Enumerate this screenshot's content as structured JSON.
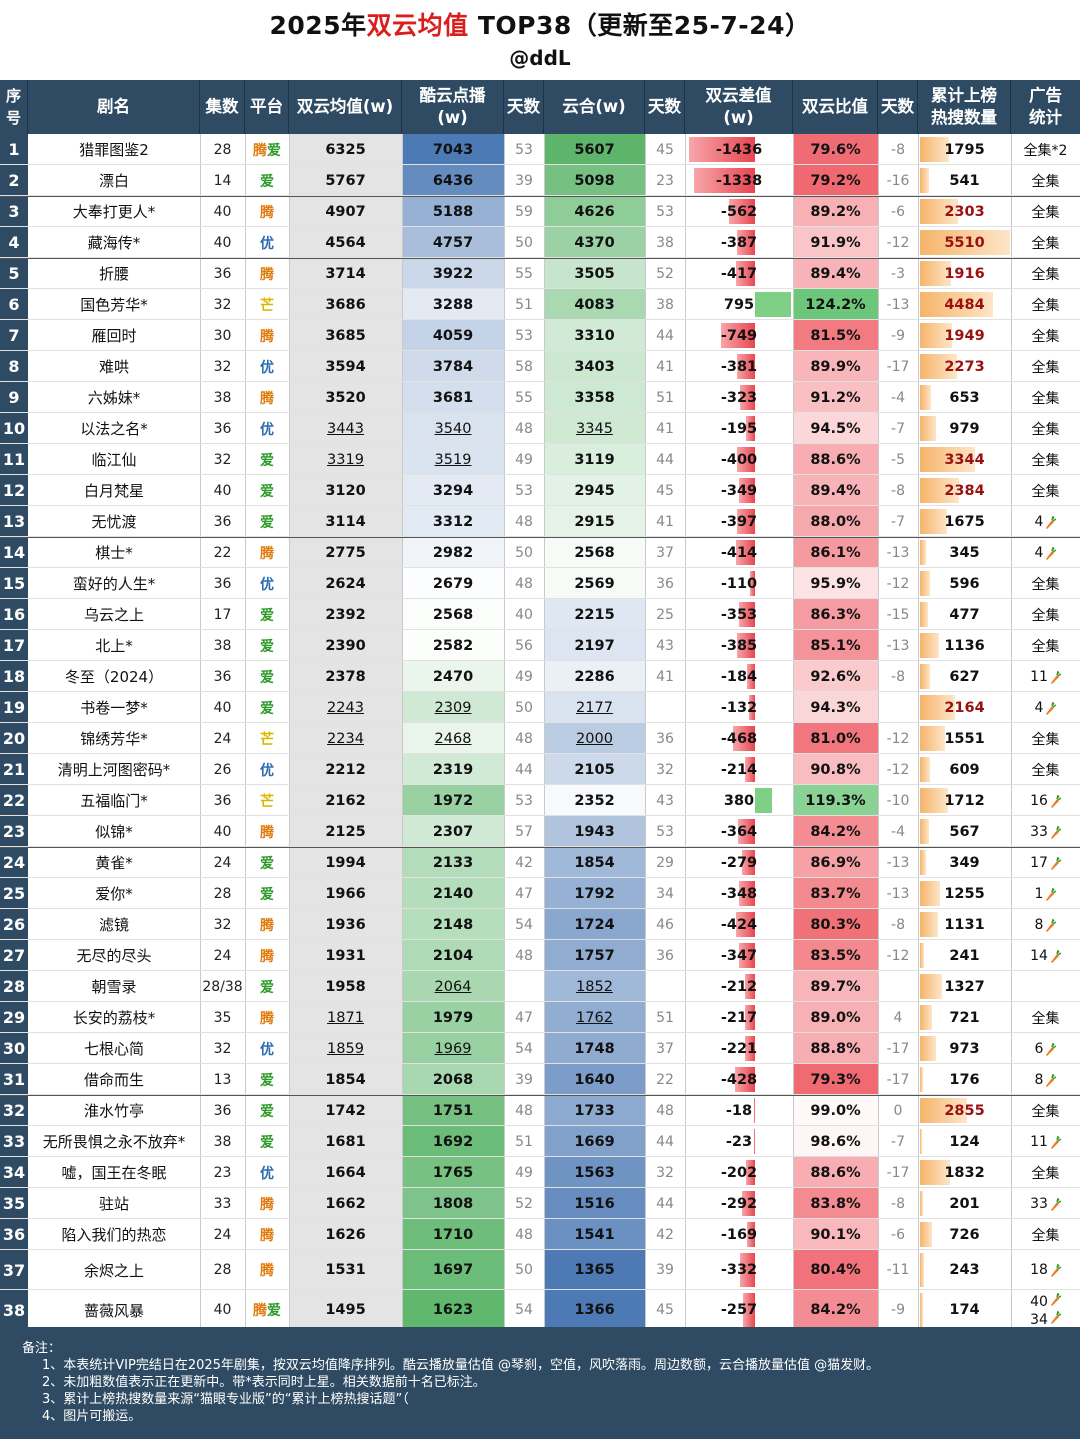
{
  "title_prefix": "2025年",
  "title_highlight": "双云均值",
  "title_suffix": " TOP38（更新至25-7-24）",
  "author": "@ddL",
  "headers": {
    "seq": "序号",
    "name": "剧名",
    "eps": "集数",
    "plat": "平台",
    "avg": "双云均值(w)",
    "ku": "酷云点播(w)",
    "kuday": "天数",
    "yun": "云合(w)",
    "yunday": "天数",
    "diff": "双云差值(w)",
    "ratio": "双云比值",
    "rday": "天数",
    "hot": "累计上榜热搜数量",
    "ad": "广告统计"
  },
  "colors": {
    "header_bg": "#2f4b63",
    "teng": "#e07b0e",
    "ai": "#2d9a2a",
    "you": "#2b6cb0",
    "mang": "#d9b600",
    "highlight": "#d91e1e"
  },
  "rows": [
    {
      "seq": "1",
      "name": "猎罪图鉴2",
      "eps": "28",
      "plat": "腾爱",
      "avg": "6325",
      "ku": "7043",
      "kud": "53",
      "yun": "5607",
      "yund": "45",
      "diff": "-1436",
      "ratio": "79.6%",
      "rd": "-8",
      "hot": "1795",
      "ad": "全集*2",
      "hotred": false
    },
    {
      "seq": "2",
      "name": "漂白",
      "eps": "14",
      "plat": "爱",
      "avg": "5767",
      "ku": "6436",
      "kud": "39",
      "yun": "5098",
      "yund": "23",
      "diff": "-1338",
      "ratio": "79.2%",
      "rd": "-16",
      "hot": "541",
      "ad": "全集",
      "hotred": false
    },
    {
      "seq": "3",
      "name": "大奉打更人*",
      "eps": "40",
      "plat": "腾",
      "avg": "4907",
      "ku": "5188",
      "kud": "59",
      "yun": "4626",
      "yund": "53",
      "diff": "-562",
      "ratio": "89.2%",
      "rd": "-6",
      "hot": "2303",
      "ad": "全集",
      "hotred": true
    },
    {
      "seq": "4",
      "name": "藏海传*",
      "eps": "40",
      "plat": "优",
      "avg": "4564",
      "ku": "4757",
      "kud": "50",
      "yun": "4370",
      "yund": "38",
      "diff": "-387",
      "ratio": "91.9%",
      "rd": "-12",
      "hot": "5510",
      "ad": "全集",
      "hotred": true
    },
    {
      "seq": "5",
      "name": "折腰",
      "eps": "36",
      "plat": "腾",
      "avg": "3714",
      "ku": "3922",
      "kud": "55",
      "yun": "3505",
      "yund": "52",
      "diff": "-417",
      "ratio": "89.4%",
      "rd": "-3",
      "hot": "1916",
      "ad": "全集",
      "hotred": true
    },
    {
      "seq": "6",
      "name": "国色芳华*",
      "eps": "32",
      "plat": "芒",
      "avg": "3686",
      "ku": "3288",
      "kud": "51",
      "yun": "4083",
      "yund": "38",
      "diff": "795",
      "ratio": "124.2%",
      "rd": "-13",
      "hot": "4484",
      "ad": "全集",
      "hotred": true
    },
    {
      "seq": "7",
      "name": "雁回时",
      "eps": "30",
      "plat": "腾",
      "avg": "3685",
      "ku": "4059",
      "kud": "53",
      "yun": "3310",
      "yund": "44",
      "diff": "-749",
      "ratio": "81.5%",
      "rd": "-9",
      "hot": "1949",
      "ad": "全集",
      "hotred": true
    },
    {
      "seq": "8",
      "name": "难哄",
      "eps": "32",
      "plat": "优",
      "avg": "3594",
      "ku": "3784",
      "kud": "58",
      "yun": "3403",
      "yund": "41",
      "diff": "-381",
      "ratio": "89.9%",
      "rd": "-17",
      "hot": "2273",
      "ad": "全集",
      "hotred": true
    },
    {
      "seq": "9",
      "name": "六姊妹*",
      "eps": "38",
      "plat": "腾",
      "avg": "3520",
      "ku": "3681",
      "kud": "55",
      "yun": "3358",
      "yund": "51",
      "diff": "-323",
      "ratio": "91.2%",
      "rd": "-4",
      "hot": "653",
      "ad": "全集",
      "hotred": false
    },
    {
      "seq": "10",
      "name": "以法之名*",
      "eps": "36",
      "plat": "优",
      "avg": "3443",
      "ku": "3540",
      "kud": "48",
      "yun": "3345",
      "yund": "41",
      "diff": "-195",
      "ratio": "94.5%",
      "rd": "-7",
      "hot": "979",
      "ad": "全集",
      "hotred": false,
      "u": [
        true,
        true,
        true
      ]
    },
    {
      "seq": "11",
      "name": "临江仙",
      "eps": "32",
      "plat": "爱",
      "avg": "3319",
      "ku": "3519",
      "kud": "49",
      "yun": "3119",
      "yund": "44",
      "diff": "-400",
      "ratio": "88.6%",
      "rd": "-5",
      "hot": "3344",
      "ad": "全集",
      "hotred": true,
      "u": [
        true,
        true,
        false
      ]
    },
    {
      "seq": "12",
      "name": "白月梵星",
      "eps": "40",
      "plat": "爱",
      "avg": "3120",
      "ku": "3294",
      "kud": "53",
      "yun": "2945",
      "yund": "45",
      "diff": "-349",
      "ratio": "89.4%",
      "rd": "-8",
      "hot": "2384",
      "ad": "全集",
      "hotred": true
    },
    {
      "seq": "13",
      "name": "无忧渡",
      "eps": "36",
      "plat": "爱",
      "avg": "3114",
      "ku": "3312",
      "kud": "48",
      "yun": "2915",
      "yund": "41",
      "diff": "-397",
      "ratio": "88.0%",
      "rd": "-7",
      "hot": "1675",
      "ad": "4",
      "carrot": true,
      "hotred": false
    },
    {
      "seq": "14",
      "name": "棋士*",
      "eps": "22",
      "plat": "腾",
      "avg": "2775",
      "ku": "2982",
      "kud": "50",
      "yun": "2568",
      "yund": "37",
      "diff": "-414",
      "ratio": "86.1%",
      "rd": "-13",
      "hot": "345",
      "ad": "4",
      "carrot": true,
      "hotred": false
    },
    {
      "seq": "15",
      "name": "蛮好的人生*",
      "eps": "36",
      "plat": "优",
      "avg": "2624",
      "ku": "2679",
      "kud": "48",
      "yun": "2569",
      "yund": "36",
      "diff": "-110",
      "ratio": "95.9%",
      "rd": "-12",
      "hot": "596",
      "ad": "全集",
      "hotred": false
    },
    {
      "seq": "16",
      "name": "乌云之上",
      "eps": "17",
      "plat": "爱",
      "avg": "2392",
      "ku": "2568",
      "kud": "40",
      "yun": "2215",
      "yund": "25",
      "diff": "-353",
      "ratio": "86.3%",
      "rd": "-15",
      "hot": "477",
      "ad": "全集",
      "hotred": false
    },
    {
      "seq": "17",
      "name": "北上*",
      "eps": "38",
      "plat": "爱",
      "avg": "2390",
      "ku": "2582",
      "kud": "56",
      "yun": "2197",
      "yund": "43",
      "diff": "-385",
      "ratio": "85.1%",
      "rd": "-13",
      "hot": "1136",
      "ad": "全集",
      "hotred": false
    },
    {
      "seq": "18",
      "name": "冬至（2024）",
      "eps": "36",
      "plat": "爱",
      "avg": "2378",
      "ku": "2470",
      "kud": "49",
      "yun": "2286",
      "yund": "41",
      "diff": "-184",
      "ratio": "92.6%",
      "rd": "-8",
      "hot": "627",
      "ad": "11",
      "carrot": true,
      "hotred": false
    },
    {
      "seq": "19",
      "name": "书卷一梦*",
      "eps": "40",
      "plat": "爱",
      "avg": "2243",
      "ku": "2309",
      "kud": "50",
      "yun": "2177",
      "yund": "",
      "diff": "-132",
      "ratio": "94.3%",
      "rd": "",
      "hot": "2164",
      "ad": "4",
      "carrot": true,
      "hotred": true,
      "u": [
        true,
        true,
        true
      ]
    },
    {
      "seq": "20",
      "name": "锦绣芳华*",
      "eps": "24",
      "plat": "芒",
      "avg": "2234",
      "ku": "2468",
      "kud": "48",
      "yun": "2000",
      "yund": "36",
      "diff": "-468",
      "ratio": "81.0%",
      "rd": "-12",
      "hot": "1551",
      "ad": "全集",
      "hotred": false,
      "u": [
        true,
        true,
        true
      ]
    },
    {
      "seq": "21",
      "name": "清明上河图密码*",
      "eps": "26",
      "plat": "优",
      "avg": "2212",
      "ku": "2319",
      "kud": "44",
      "yun": "2105",
      "yund": "32",
      "diff": "-214",
      "ratio": "90.8%",
      "rd": "-12",
      "hot": "609",
      "ad": "全集",
      "hotred": false
    },
    {
      "seq": "22",
      "name": "五福临门*",
      "eps": "36",
      "plat": "芒",
      "avg": "2162",
      "ku": "1972",
      "kud": "53",
      "yun": "2352",
      "yund": "43",
      "diff": "380",
      "ratio": "119.3%",
      "rd": "-10",
      "hot": "1712",
      "ad": "16",
      "carrot": true,
      "hotred": false
    },
    {
      "seq": "23",
      "name": "似锦*",
      "eps": "40",
      "plat": "腾",
      "avg": "2125",
      "ku": "2307",
      "kud": "57",
      "yun": "1943",
      "yund": "53",
      "diff": "-364",
      "ratio": "84.2%",
      "rd": "-4",
      "hot": "567",
      "ad": "33",
      "carrot": true,
      "hotred": false
    },
    {
      "seq": "24",
      "name": "黄雀*",
      "eps": "24",
      "plat": "爱",
      "avg": "1994",
      "ku": "2133",
      "kud": "42",
      "yun": "1854",
      "yund": "29",
      "diff": "-279",
      "ratio": "86.9%",
      "rd": "-13",
      "hot": "349",
      "ad": "17",
      "carrot": true,
      "hotred": false
    },
    {
      "seq": "25",
      "name": "爱你*",
      "eps": "28",
      "plat": "爱",
      "avg": "1966",
      "ku": "2140",
      "kud": "47",
      "yun": "1792",
      "yund": "34",
      "diff": "-348",
      "ratio": "83.7%",
      "rd": "-13",
      "hot": "1255",
      "ad": "1",
      "carrot": true,
      "hotred": false
    },
    {
      "seq": "26",
      "name": "滤镜",
      "eps": "32",
      "plat": "腾",
      "avg": "1936",
      "ku": "2148",
      "kud": "54",
      "yun": "1724",
      "yund": "46",
      "diff": "-424",
      "ratio": "80.3%",
      "rd": "-8",
      "hot": "1131",
      "ad": "8",
      "carrot": true,
      "hotred": false
    },
    {
      "seq": "27",
      "name": "无尽的尽头",
      "eps": "24",
      "plat": "腾",
      "avg": "1931",
      "ku": "2104",
      "kud": "48",
      "yun": "1757",
      "yund": "36",
      "diff": "-347",
      "ratio": "83.5%",
      "rd": "-12",
      "hot": "241",
      "ad": "14",
      "carrot": true,
      "hotred": false
    },
    {
      "seq": "28",
      "name": "朝雪录",
      "eps": "28/38",
      "plat": "爱",
      "avg": "1958",
      "ku": "2064",
      "kud": "",
      "yun": "1852",
      "yund": "",
      "diff": "-212",
      "ratio": "89.7%",
      "rd": "",
      "hot": "1327",
      "ad": "",
      "hotred": false,
      "u": [
        false,
        true,
        true
      ]
    },
    {
      "seq": "29",
      "name": "长安的荔枝*",
      "eps": "35",
      "plat": "腾",
      "avg": "1871",
      "ku": "1979",
      "kud": "47",
      "yun": "1762",
      "yund": "51",
      "diff": "-217",
      "ratio": "89.0%",
      "rd": "4",
      "hot": "721",
      "ad": "全集",
      "hotred": false,
      "u": [
        true,
        false,
        true
      ]
    },
    {
      "seq": "30",
      "name": "七根心简",
      "eps": "32",
      "plat": "优",
      "avg": "1859",
      "ku": "1969",
      "kud": "54",
      "yun": "1748",
      "yund": "37",
      "diff": "-221",
      "ratio": "88.8%",
      "rd": "-17",
      "hot": "973",
      "ad": "6",
      "carrot": true,
      "hotred": false,
      "u": [
        true,
        true,
        false
      ]
    },
    {
      "seq": "31",
      "name": "借命而生",
      "eps": "13",
      "plat": "爱",
      "avg": "1854",
      "ku": "2068",
      "kud": "39",
      "yun": "1640",
      "yund": "22",
      "diff": "-428",
      "ratio": "79.3%",
      "rd": "-17",
      "hot": "176",
      "ad": "8",
      "carrot": true,
      "hotred": false
    },
    {
      "seq": "32",
      "name": "淮水竹亭",
      "eps": "36",
      "plat": "爱",
      "avg": "1742",
      "ku": "1751",
      "kud": "48",
      "yun": "1733",
      "yund": "48",
      "diff": "-18",
      "ratio": "99.0%",
      "rd": "0",
      "hot": "2855",
      "ad": "全集",
      "hotred": true
    },
    {
      "seq": "33",
      "name": "无所畏惧之永不放弃*",
      "eps": "38",
      "plat": "爱",
      "avg": "1681",
      "ku": "1692",
      "kud": "51",
      "yun": "1669",
      "yund": "44",
      "diff": "-23",
      "ratio": "98.6%",
      "rd": "-7",
      "hot": "124",
      "ad": "11",
      "carrot": true,
      "hotred": false
    },
    {
      "seq": "34",
      "name": "嘘，国王在冬眠",
      "eps": "23",
      "plat": "优",
      "avg": "1664",
      "ku": "1765",
      "kud": "49",
      "yun": "1563",
      "yund": "32",
      "diff": "-202",
      "ratio": "88.6%",
      "rd": "-17",
      "hot": "1832",
      "ad": "全集",
      "hotred": false
    },
    {
      "seq": "35",
      "name": "驻站",
      "eps": "33",
      "plat": "腾",
      "avg": "1662",
      "ku": "1808",
      "kud": "52",
      "yun": "1516",
      "yund": "44",
      "diff": "-292",
      "ratio": "83.8%",
      "rd": "-8",
      "hot": "201",
      "ad": "33",
      "carrot": true,
      "hotred": false
    },
    {
      "seq": "36",
      "name": "陷入我们的热恋",
      "eps": "24",
      "plat": "腾",
      "avg": "1626",
      "ku": "1710",
      "kud": "48",
      "yun": "1541",
      "yund": "42",
      "diff": "-169",
      "ratio": "90.1%",
      "rd": "-6",
      "hot": "726",
      "ad": "全集",
      "hotred": false
    },
    {
      "seq": "37",
      "name": "余烬之上",
      "eps": "28",
      "plat": "腾",
      "avg": "1531",
      "ku": "1697",
      "kud": "50",
      "yun": "1365",
      "yund": "39",
      "diff": "-332",
      "ratio": "80.4%",
      "rd": "-11",
      "hot": "243",
      "ad": "18",
      "carrot": true,
      "hotred": false
    },
    {
      "seq": "38",
      "name": "蔷薇风暴",
      "eps": "40",
      "plat": "腾爱",
      "avg": "1495",
      "ku": "1623",
      "kud": "54",
      "yun": "1366",
      "yund": "45",
      "diff": "-257",
      "ratio": "84.2%",
      "rd": "-9",
      "hot": "174",
      "ad": "40",
      "ad2": "34",
      "carrot": true,
      "hotred": false
    }
  ],
  "notes": {
    "title": "备注：",
    "lines": [
      "1、本表统计VIP完结日在2025年剧集，按双云均值降序排列。酷云播放量估值 @琴刹，空值，风吹落雨。周边数额，云合播放量估值 @猫发财。",
      "2、未加粗数值表示正在更新中。带*表示同时上星。相关数据前十名已标注。",
      "3、累计上榜热搜数量来源“猫眼专业版”的“累计上榜热搜话题”（",
      "4、图片可搬运。"
    ]
  }
}
